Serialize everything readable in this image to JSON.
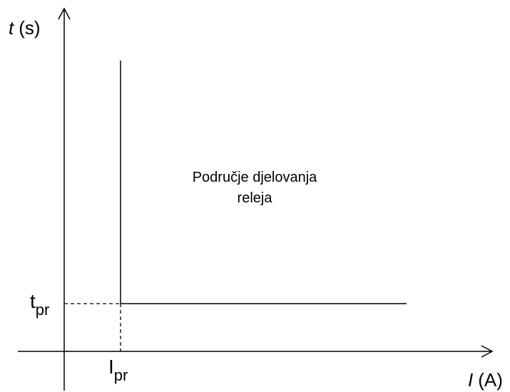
{
  "axes": {
    "y_label": {
      "symbol": "t",
      "unit": "(s)"
    },
    "x_label": {
      "symbol": "I",
      "unit": "(A)"
    }
  },
  "markers": {
    "t_pr": {
      "symbol": "t",
      "subscript": "pr"
    },
    "I_pr": {
      "symbol": "I",
      "subscript": "pr"
    }
  },
  "region_label": [
    "Područje djelovanja",
    "releja"
  ]
}
